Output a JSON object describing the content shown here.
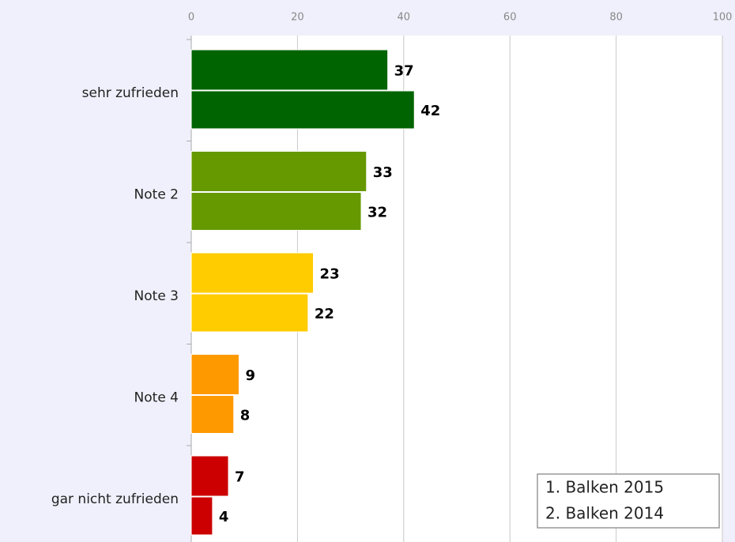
{
  "chart_data": {
    "type": "bar",
    "orientation": "horizontal",
    "categories": [
      "sehr zufrieden",
      "Note 2",
      "Note 3",
      "Note 4",
      "gar nicht zufrieden"
    ],
    "colors": [
      "#006400",
      "#669900",
      "#ffcc00",
      "#ff9900",
      "#cc0000"
    ],
    "series": [
      {
        "name": "1. Balken 2015",
        "values": [
          37,
          33,
          23,
          9,
          7
        ]
      },
      {
        "name": "2. Balken 2014",
        "values": [
          42,
          32,
          22,
          8,
          4
        ]
      }
    ],
    "xlim": [
      0,
      100
    ],
    "xticks": [
      0,
      20,
      40,
      60,
      80,
      100
    ],
    "grid": true,
    "legend": "lower right"
  }
}
